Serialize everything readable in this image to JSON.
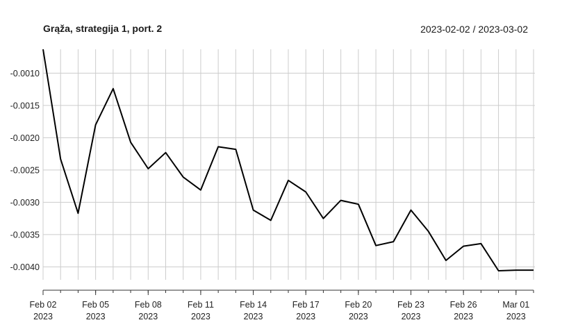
{
  "chart_data": {
    "type": "line",
    "title": "Grąža, strategija 1, port. 2",
    "date_range": "2023-02-02 / 2023-03-02",
    "xlabel": "",
    "ylabel": "",
    "ylim": [
      -0.0042,
      -0.00063
    ],
    "yticks": [
      -0.001,
      -0.0015,
      -0.002,
      -0.0025,
      -0.003,
      -0.0035,
      -0.004
    ],
    "ytick_labels": [
      "-0.0010",
      "-0.0015",
      "-0.0020",
      "-0.0025",
      "-0.0030",
      "-0.0035",
      "-0.0040"
    ],
    "x_range": [
      "2023-02-02",
      "2023-03-02"
    ],
    "xtick_labels": [
      {
        "date": "2023-02-02",
        "line1": "Feb 02",
        "line2": "2023"
      },
      {
        "date": "2023-02-05",
        "line1": "Feb 05",
        "line2": "2023"
      },
      {
        "date": "2023-02-08",
        "line1": "Feb 08",
        "line2": "2023"
      },
      {
        "date": "2023-02-11",
        "line1": "Feb 11",
        "line2": "2023"
      },
      {
        "date": "2023-02-14",
        "line1": "Feb 14",
        "line2": "2023"
      },
      {
        "date": "2023-02-17",
        "line1": "Feb 17",
        "line2": "2023"
      },
      {
        "date": "2023-02-20",
        "line1": "Feb 20",
        "line2": "2023"
      },
      {
        "date": "2023-02-23",
        "line1": "Feb 23",
        "line2": "2023"
      },
      {
        "date": "2023-02-26",
        "line1": "Feb 26",
        "line2": "2023"
      },
      {
        "date": "2023-03-01",
        "line1": "Mar 01",
        "line2": "2023"
      }
    ],
    "grid": true,
    "line_color": "#000000",
    "grid_color": "#cccccc",
    "series": [
      {
        "x": [
          "2023-02-02",
          "2023-02-03",
          "2023-02-04",
          "2023-02-05",
          "2023-02-06",
          "2023-02-07",
          "2023-02-08",
          "2023-02-09",
          "2023-02-10",
          "2023-02-11",
          "2023-02-12",
          "2023-02-13",
          "2023-02-14",
          "2023-02-15",
          "2023-02-16",
          "2023-02-17",
          "2023-02-18",
          "2023-02-19",
          "2023-02-20",
          "2023-02-21",
          "2023-02-22",
          "2023-02-23",
          "2023-02-24",
          "2023-02-25",
          "2023-02-26",
          "2023-02-27",
          "2023-02-28",
          "2023-03-01",
          "2023-03-02"
        ],
        "values": [
          -0.00063,
          -0.00233,
          -0.00317,
          -0.0018,
          -0.00124,
          -0.00207,
          -0.00248,
          -0.00223,
          -0.00261,
          -0.00281,
          -0.00214,
          -0.00218,
          -0.00312,
          -0.00328,
          -0.00266,
          -0.00284,
          -0.00325,
          -0.00297,
          -0.00303,
          -0.00367,
          -0.00361,
          -0.00312,
          -0.00345,
          -0.0039,
          -0.00368,
          -0.00364,
          -0.00406,
          -0.00405,
          -0.00405
        ]
      }
    ]
  }
}
